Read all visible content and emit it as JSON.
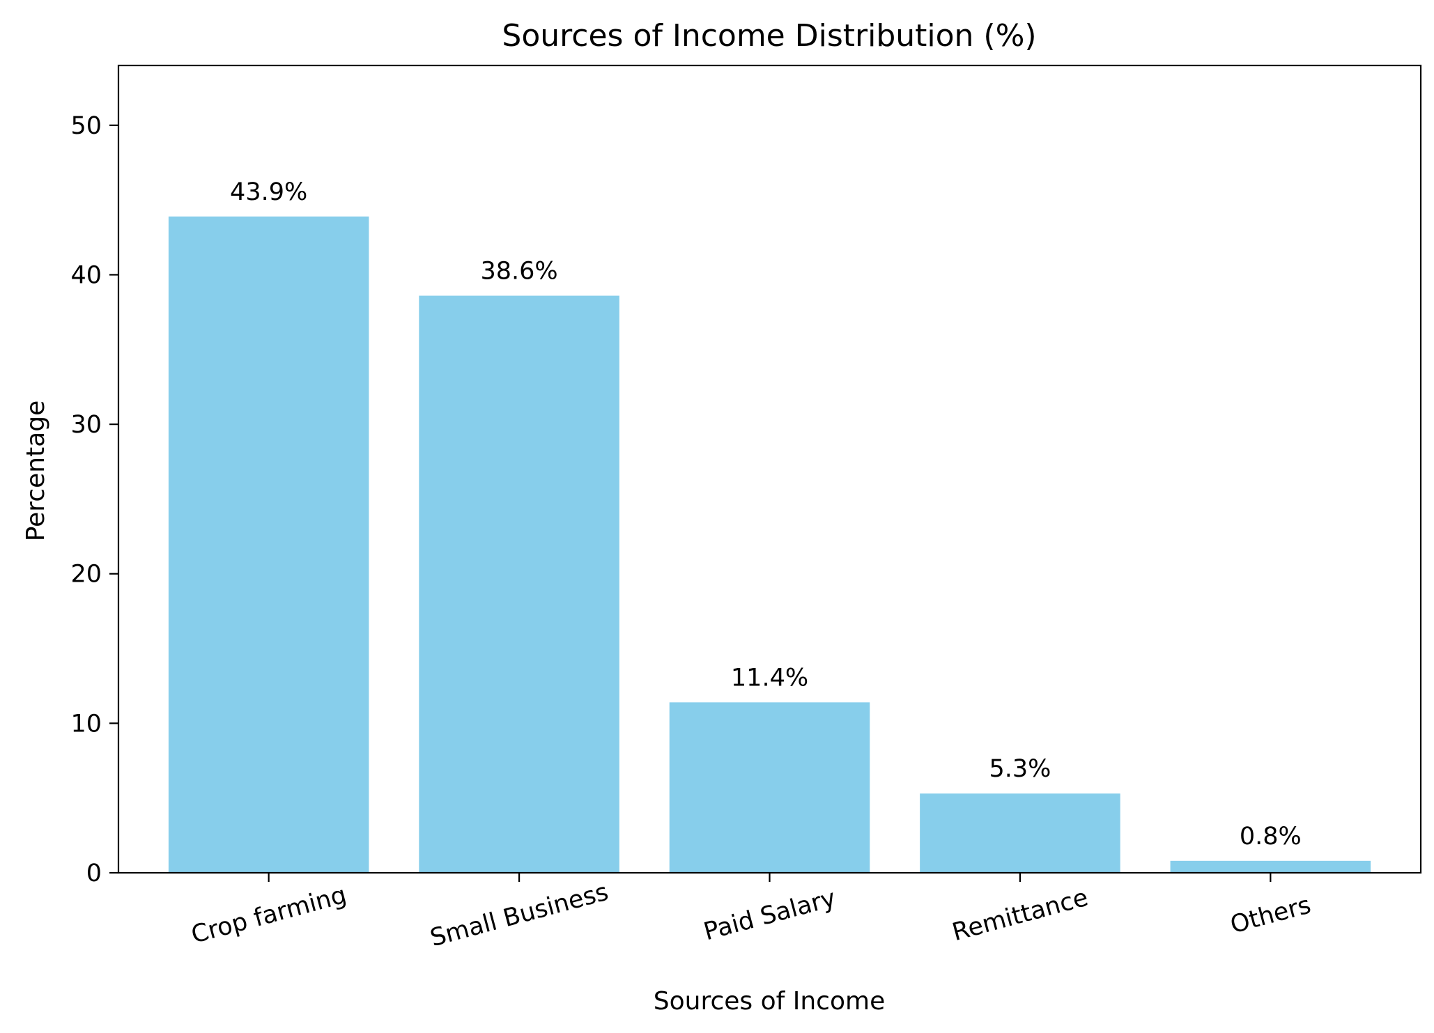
{
  "chart_data": {
    "type": "bar",
    "title": "Sources of Income Distribution (%)",
    "xlabel": "Sources of Income",
    "ylabel": "Percentage",
    "categories": [
      "Crop farming",
      "Small Business",
      "Paid Salary",
      "Remittance",
      "Others"
    ],
    "values": [
      43.9,
      38.6,
      11.4,
      5.3,
      0.8
    ],
    "data_labels": [
      "43.9%",
      "38.6%",
      "11.4%",
      "5.3%",
      "0.8%"
    ],
    "yticks": [
      "0",
      "10",
      "20",
      "30",
      "40",
      "50"
    ],
    "ytick_values": [
      0,
      10,
      20,
      30,
      40,
      50
    ],
    "ylim": [
      0,
      54
    ],
    "x_tick_rotation_deg": -15,
    "bar_color": "#87CEEB",
    "grid": false,
    "legend": "none"
  }
}
